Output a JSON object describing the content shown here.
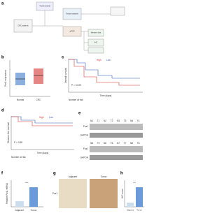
{
  "panels": {
    "a": {
      "label": "a",
      "boxes": [
        "TCGA-COAD",
        "CRC patients",
        "Tissue samples",
        "qPCR",
        "Western blot",
        "IHC"
      ]
    },
    "b": {
      "label": "b",
      "ylabel": "Pus1 expression",
      "groups": [
        "Normal",
        "CRC"
      ]
    },
    "c": {
      "label": "c",
      "ylabel": "Overall survival",
      "xlabel": "Time (days)",
      "legend": [
        "High",
        "Low"
      ],
      "p": "P = 0.049",
      "risk_title": "Number at risk"
    },
    "d": {
      "label": "d",
      "ylabel": "Disease-free survival",
      "xlabel": "Time (days)",
      "legend": [
        "High",
        "Low"
      ],
      "p": "P = 0.58",
      "risk_title": "Number at risk"
    },
    "e": {
      "label": "e",
      "lanes_top": [
        "N1",
        "T1",
        "N2",
        "T2",
        "N3",
        "T3",
        "N4",
        "T4"
      ],
      "lanes_bottom": [
        "N5",
        "T5",
        "N6",
        "T6",
        "N7",
        "T7",
        "N8",
        "T8"
      ],
      "proteins": [
        "Pus1",
        "GAPDH"
      ]
    },
    "f": {
      "label": "f",
      "ylabel": "Relative Pus1 mRNA",
      "groups": [
        "Adjacent",
        "Tumor"
      ],
      "sig": "****"
    },
    "g": {
      "label": "g",
      "row_label": "Pus1",
      "columns": [
        "Adjacent",
        "Tumor"
      ]
    },
    "h": {
      "label": "h",
      "ylabel": "IHC score",
      "groups": [
        "Adjacent",
        "Tumor"
      ],
      "sig": "***"
    }
  }
}
